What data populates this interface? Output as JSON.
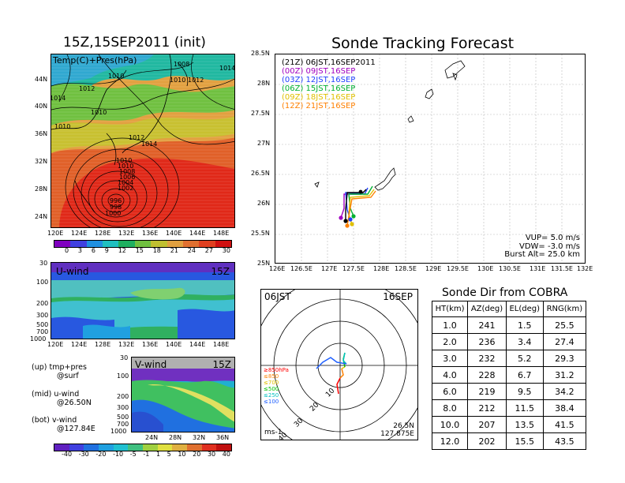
{
  "left_top": {
    "title": "15Z,15SEP2011 (init)",
    "overlay_label": "Temp(C)+Pres(hPa)",
    "lat_ticks": [
      "44N",
      "40N",
      "36N",
      "32N",
      "28N",
      "24N"
    ],
    "lon_ticks": [
      "120E",
      "124E",
      "128E",
      "132E",
      "136E",
      "140E",
      "144E",
      "148E"
    ],
    "contour_labels": [
      "1010",
      "1010",
      "1012",
      "1010",
      "1010",
      "1012",
      "1014",
      "1014",
      "1008",
      "1012",
      "1014",
      "1010",
      "1010",
      "1008",
      "1006",
      "1004",
      "1002",
      "996",
      "998",
      "1000"
    ],
    "colorbar_ticks": [
      "0",
      "3",
      "6",
      "9",
      "12",
      "15",
      "18",
      "21",
      "24",
      "27",
      "30"
    ]
  },
  "u_wind": {
    "label": "U-wind",
    "time": "15Z",
    "y_ticks": [
      "30",
      "100",
      "200",
      "300",
      "500",
      "700",
      "1000"
    ],
    "x_ticks": [
      "120E",
      "124E",
      "128E",
      "132E",
      "136E",
      "140E",
      "144E",
      "148E"
    ]
  },
  "v_wind": {
    "label": "V-wind",
    "time": "15Z",
    "y_ticks": [
      "30",
      "100",
      "200",
      "300",
      "500",
      "700",
      "1000"
    ],
    "x_ticks": [
      "24N",
      "28N",
      "32N",
      "36N"
    ]
  },
  "notes": {
    "up": "(up) tmp+pres",
    "up2": "@surf",
    "mid": "(mid) u-wind",
    "mid2": "@26.50N",
    "bot": "(bot) v-wind",
    "bot2": "@127.84E"
  },
  "wind_colorbar_ticks": [
    "-40",
    "-30",
    "-20",
    "-10",
    "-5",
    "-1",
    "1",
    "5",
    "10",
    "20",
    "30",
    "40"
  ],
  "tracking": {
    "title": "Sonde Tracking Forecast",
    "lat_ticks": [
      "28.5N",
      "28N",
      "27.5N",
      "27N",
      "26.5N",
      "26N",
      "25.5N",
      "25N"
    ],
    "lon_ticks": [
      "126E",
      "126.5E",
      "127E",
      "127.5E",
      "128E",
      "128.5E",
      "129E",
      "129.5E",
      "130E",
      "130.5E",
      "131E",
      "131.5E",
      "132E"
    ],
    "legend": [
      {
        "text": "(21Z) 06JST,16SEP2011",
        "color": "#000000"
      },
      {
        "text": "(00Z) 09JST,16SEP",
        "color": "#a000c0"
      },
      {
        "text": "(03Z) 12JST,16SEP",
        "color": "#2040ff"
      },
      {
        "text": "(06Z) 15JST,16SEP",
        "color": "#00b030"
      },
      {
        "text": "(09Z) 18JST,16SEP",
        "color": "#e0c000"
      },
      {
        "text": "(12Z) 21JST,16SEP",
        "color": "#ff8000"
      }
    ],
    "vup": "VUP=  5.0 m/s",
    "vdw": "VDW= -3.0 m/s",
    "burst": "Burst Alt= 25.0 km"
  },
  "hodograph": {
    "time_label": "06JST",
    "date_label": "16SEP",
    "ring_labels": [
      "10",
      "20",
      "30",
      "40"
    ],
    "levels": [
      {
        "text": "≥850hPa",
        "color": "#ff0000"
      },
      {
        "text": "≤850",
        "color": "#ff8000"
      },
      {
        "text": "≤700",
        "color": "#e0c000"
      },
      {
        "text": "≤500",
        "color": "#00c000"
      },
      {
        "text": "≤250",
        "color": "#00c0c0"
      },
      {
        "text": "≤100",
        "color": "#2060ff"
      }
    ],
    "unit": "ms-1",
    "coord_lat": "26.5N",
    "coord_lon": "127.875E"
  },
  "sonde_dir": {
    "title": "Sonde Dir from COBRA",
    "headers": [
      "HT(km)",
      "AZ(deg)",
      "EL(deg)",
      "RNG(km)"
    ],
    "rows": [
      [
        "1.0",
        "241",
        "1.5",
        "25.5"
      ],
      [
        "2.0",
        "236",
        "3.4",
        "27.4"
      ],
      [
        "3.0",
        "232",
        "5.2",
        "29.3"
      ],
      [
        "4.0",
        "228",
        "6.7",
        "31.2"
      ],
      [
        "6.0",
        "219",
        "9.5",
        "34.2"
      ],
      [
        "8.0",
        "212",
        "11.5",
        "38.4"
      ],
      [
        "10.0",
        "207",
        "13.5",
        "41.5"
      ],
      [
        "12.0",
        "202",
        "15.5",
        "43.5"
      ]
    ]
  }
}
